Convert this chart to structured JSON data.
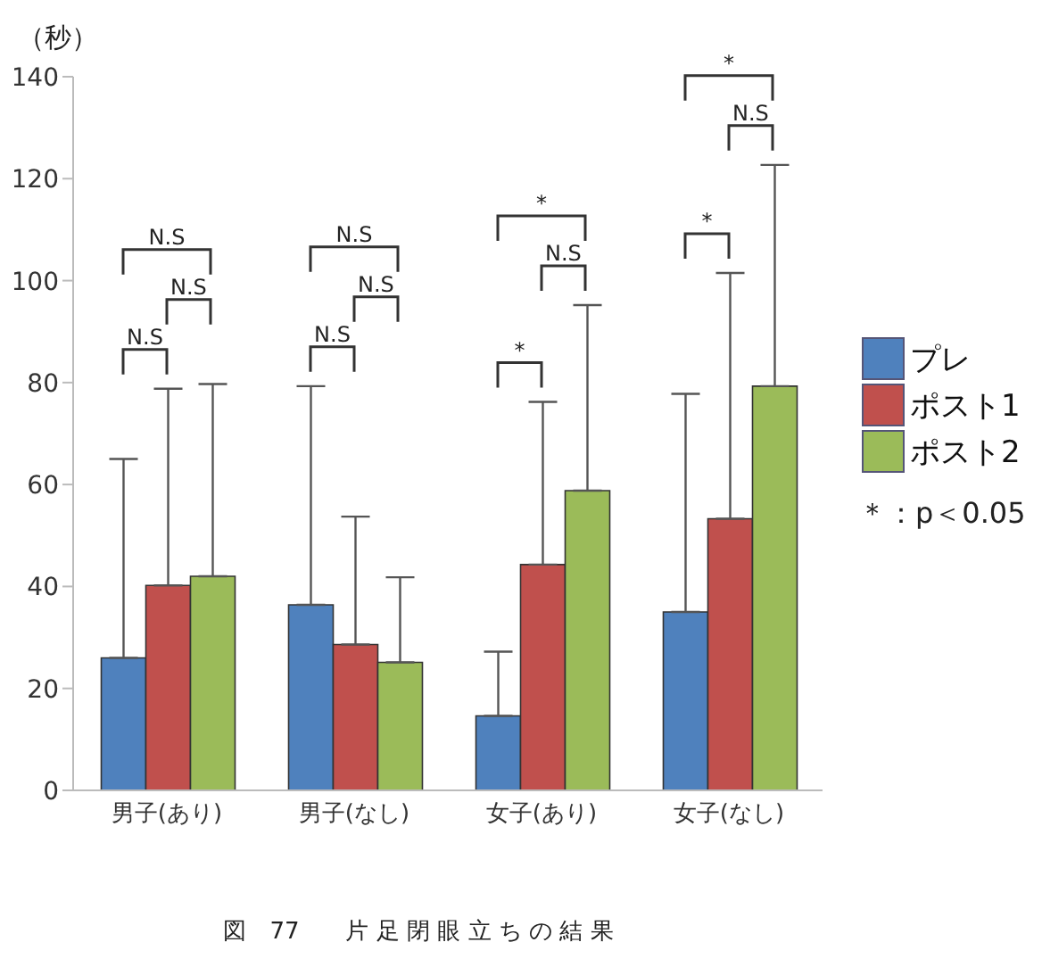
{
  "chart_data": {
    "type": "bar",
    "title": "図　77　　片 足 閉 眼 立 ち の 結 果",
    "ylabel": "（秒）",
    "categories": [
      "男子(あり)",
      "男子(なし)",
      "女子(あり)",
      "女子(なし)"
    ],
    "series": [
      {
        "name": "プレ",
        "color": "#4f81bd",
        "values": [
          26,
          36.4,
          14.6,
          35
        ],
        "errors": [
          [
            26,
            65
          ],
          [
            36.4,
            79.3
          ],
          [
            14.6,
            27.2
          ],
          [
            35,
            77.8
          ]
        ]
      },
      {
        "name": "ポスト1",
        "color": "#c0504d",
        "values": [
          40.2,
          28.6,
          44.3,
          53.3
        ],
        "errors": [
          [
            40.2,
            78.8
          ],
          [
            28.6,
            53.7
          ],
          [
            44.3,
            76.2
          ],
          [
            53.3,
            101.5
          ]
        ]
      },
      {
        "name": "ポスト2",
        "color": "#9bbb59",
        "values": [
          42,
          25.1,
          58.8,
          79.3
        ],
        "errors": [
          [
            42,
            79.7
          ],
          [
            25.1,
            41.8
          ],
          [
            58.8,
            95.2
          ],
          [
            79.3,
            122.7
          ]
        ]
      }
    ],
    "ylim": [
      0,
      140
    ],
    "yticks": [
      0,
      20,
      40,
      60,
      80,
      100,
      120,
      140
    ],
    "grid": false,
    "legend": "right",
    "annotations": [
      "N.S",
      "N.S",
      "N.S",
      "N.S",
      "N.S",
      "N.S",
      "*",
      "N.S",
      "*",
      "*",
      "N.S",
      "*",
      "＊：p＜0.05"
    ]
  }
}
